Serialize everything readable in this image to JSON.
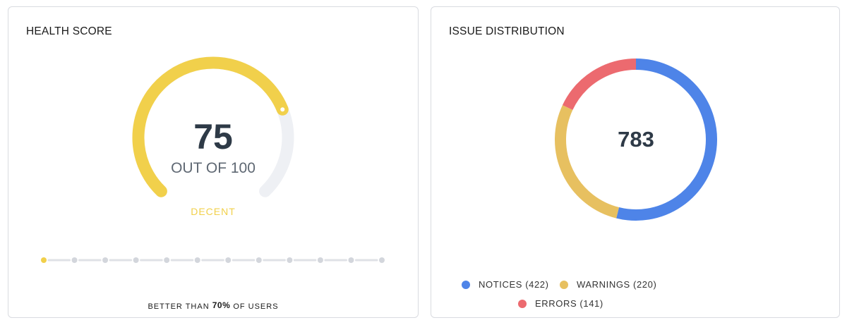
{
  "health": {
    "title": "HEALTH SCORE",
    "score": "75",
    "out_of": "OUT OF 100",
    "score_value": 75,
    "score_max": 100,
    "rating": "DECENT",
    "better_prefix": "BETTER THAN",
    "better_pct": "70%",
    "better_suffix": "OF USERS",
    "progress_steps": 12,
    "progress_active_index": 0,
    "colors": {
      "gauge": "#f1d04b",
      "track": "#eef0f4",
      "dot_inactive": "#d3d6dc",
      "dot_active": "#f1d04b"
    }
  },
  "issues": {
    "title": "ISSUE DISTRIBUTION",
    "total": "783",
    "legend": [
      {
        "key": "notices",
        "label": "NOTICES (422)",
        "color": "#4e84e8"
      },
      {
        "key": "warnings",
        "label": "WARNINGS (220)",
        "color": "#e7c060"
      },
      {
        "key": "errors",
        "label": "ERRORS (141)",
        "color": "#ec6a6f"
      }
    ]
  },
  "chart_data": {
    "type": "pie",
    "categories": [
      "NOTICES",
      "WARNINGS",
      "ERRORS"
    ],
    "values": [
      422,
      220,
      141
    ],
    "colors": [
      "#4e84e8",
      "#e7c060",
      "#ec6a6f"
    ],
    "total": 783,
    "title": "ISSUE DISTRIBUTION",
    "legend_position": "bottom"
  }
}
